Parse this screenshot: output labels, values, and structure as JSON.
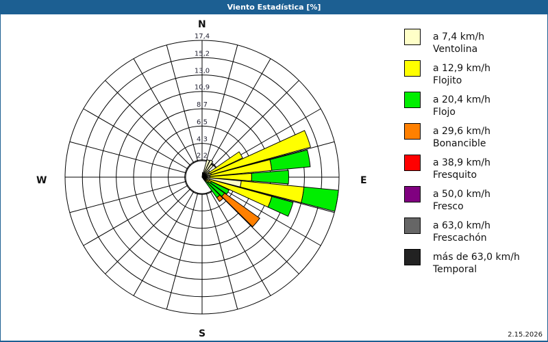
{
  "window": {
    "title": "Viento Estadística [%]",
    "date": "2.15.2026"
  },
  "cardinals": {
    "n": "N",
    "e": "E",
    "s": "S",
    "w": "W"
  },
  "legend": [
    {
      "speed": "a 7,4 km/h",
      "name": "Ventolina",
      "color": "#ffffc8"
    },
    {
      "speed": "a 12,9 km/h",
      "name": "Flojito",
      "color": "#ffff00"
    },
    {
      "speed": "a 20,4 km/h",
      "name": "Flojo",
      "color": "#00ee00"
    },
    {
      "speed": "a 29,6 km/h",
      "name": "Bonancible",
      "color": "#ff8000"
    },
    {
      "speed": "a 38,9 km/h",
      "name": "Fresquito",
      "color": "#ff0000"
    },
    {
      "speed": "a 50,0 km/h",
      "name": "Fresco",
      "color": "#800080"
    },
    {
      "speed": "a 63,0 km/h",
      "name": "Frescachón",
      "color": "#666666"
    },
    {
      "speed": "más de 63,0 km/h",
      "name": "Temporal",
      "color": "#222222"
    }
  ],
  "chart_data": {
    "type": "wind-rose",
    "title": "Viento Estadística [%]",
    "radial_ticks": [
      2.2,
      4.3,
      6.5,
      8.7,
      10.9,
      13.0,
      15.2,
      17.4
    ],
    "radial_max": 17.4,
    "directions_deg": [
      10,
      20,
      30,
      40,
      50,
      60,
      70,
      80,
      90,
      100,
      110,
      120,
      130,
      140
    ],
    "series": [
      {
        "name": "Ventolina",
        "values": [
          0.6,
          2.3,
          2.4,
          2.0,
          1.2,
          1.0,
          1.2,
          1.0,
          1.0,
          5.0,
          1.0,
          0.5,
          0.3,
          0.3
        ]
      },
      {
        "name": "Flojito",
        "values": [
          0,
          0,
          0,
          0,
          0,
          4.7,
          13.1,
          7.9,
          5.3,
          8.0,
          8.2,
          0.8,
          0.7,
          0.2
        ]
      },
      {
        "name": "Flojo",
        "values": [
          0,
          0,
          0,
          0,
          0,
          0,
          0,
          4.9,
          4.7,
          4.4,
          2.8,
          2.5,
          2.5,
          2.7
        ]
      },
      {
        "name": "Bonancible",
        "values": [
          0,
          0,
          0,
          0,
          0,
          0,
          0,
          0,
          0,
          0,
          0,
          0,
          5.5,
          0.6
        ]
      },
      {
        "name": "Fresquito",
        "values": [
          0,
          0,
          0,
          0,
          0,
          0,
          0,
          0,
          0,
          0,
          0,
          0,
          0,
          0
        ]
      },
      {
        "name": "Fresco",
        "values": [
          0,
          0,
          0,
          0,
          0,
          0,
          0,
          0,
          0,
          0,
          0,
          0,
          0,
          0
        ]
      },
      {
        "name": "Frescachón",
        "values": [
          0,
          0,
          0,
          0,
          0,
          0,
          0,
          0,
          0,
          0,
          0,
          0,
          0,
          0
        ]
      },
      {
        "name": "Temporal",
        "values": [
          0,
          0,
          0,
          0,
          0,
          0,
          0,
          0,
          0,
          0,
          0,
          0,
          0,
          0
        ]
      }
    ],
    "legend_position": "right",
    "grid": true
  }
}
